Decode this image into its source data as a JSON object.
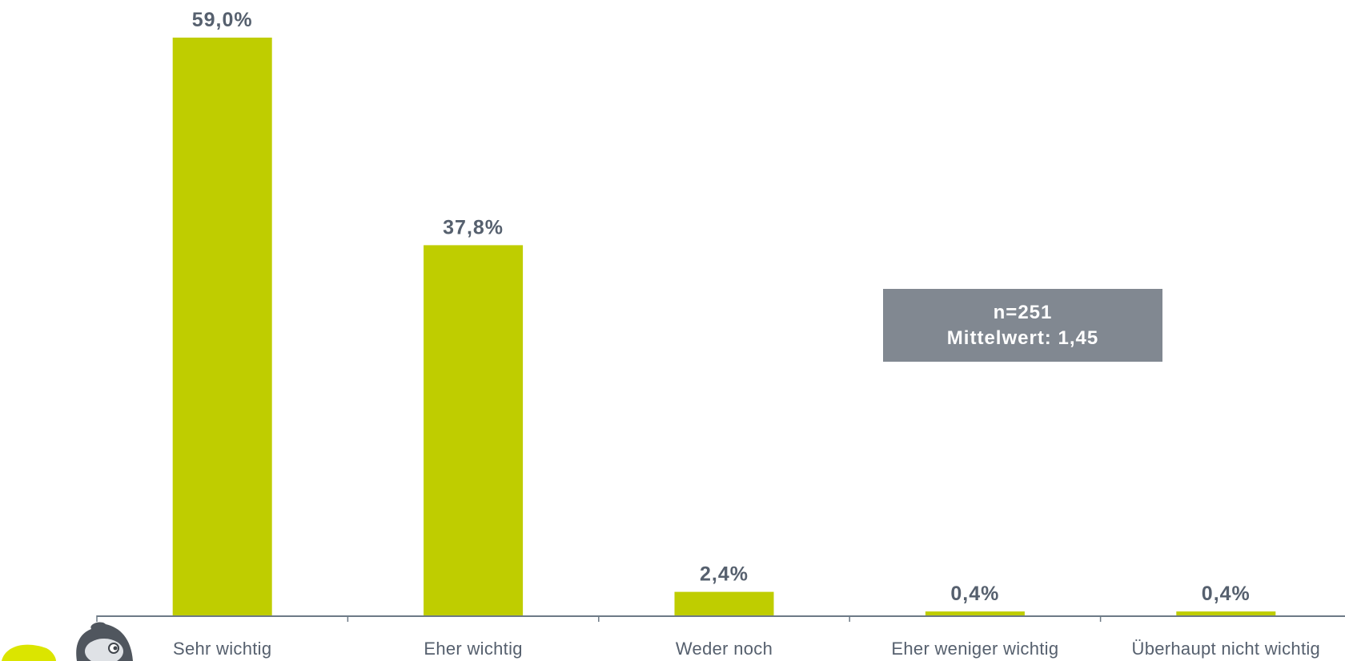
{
  "chart_data": {
    "type": "bar",
    "categories": [
      "Sehr wichtig",
      "Eher wichtig",
      "Weder noch",
      "Eher weniger wichtig",
      "Überhaupt nicht wichtig"
    ],
    "values": [
      59.0,
      37.8,
      2.4,
      0.4,
      0.4
    ],
    "value_labels": [
      "59,0%",
      "37,8%",
      "2,4%",
      "0,4%",
      "0,4%"
    ],
    "unit": "%",
    "ylim": [
      0,
      59.0
    ],
    "grid": false,
    "legend": "none",
    "bar_color": "#bfcd00",
    "label_color": "#56606e",
    "axis_color": "#6d7a86"
  },
  "info_box": {
    "line1": "n=251",
    "line2": "Mittelwert: 1,45",
    "background": "#818891"
  },
  "mascot": {
    "icon": "mascot-character-icon",
    "accent": "#dbe500"
  }
}
